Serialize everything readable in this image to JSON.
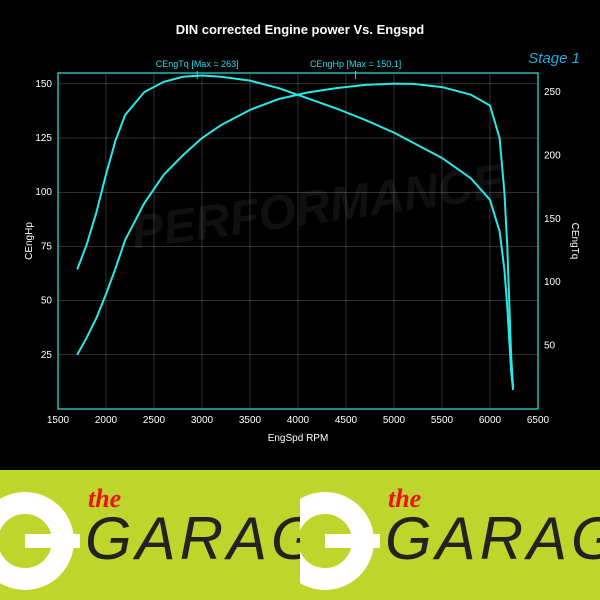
{
  "chart": {
    "type": "line",
    "title": "DIN corrected Engine power Vs. Engspd",
    "stage_label": "Stage 1",
    "background_color": "#000000",
    "line_color": "#28e8e8",
    "line_width": 2,
    "grid_color": "#666666",
    "grid_width": 0.5,
    "axis_color": "#28e8e8",
    "text_color": "#ffffff",
    "title_fontsize": 13,
    "label_fontsize": 10,
    "tick_fontsize": 10,
    "x": {
      "label": "EngSpd RPM",
      "min": 1500,
      "max": 6500,
      "ticks": [
        1500,
        2000,
        2500,
        3000,
        3500,
        4000,
        4500,
        5000,
        5500,
        6000,
        6500
      ]
    },
    "y_left": {
      "label": "CEngHp",
      "min": 0,
      "max": 155,
      "ticks": [
        25,
        50,
        75,
        100,
        125,
        150
      ]
    },
    "y_right": {
      "label": "CEngTq",
      "min": 0,
      "max": 265,
      "ticks": [
        50,
        100,
        150,
        200,
        250
      ]
    },
    "series_labels": {
      "torque": "CEngTq [Max = 263]",
      "power": "CEngHp [Max = 150.1]"
    },
    "series": {
      "power_hp": {
        "axis": "left",
        "data": [
          [
            1700,
            25
          ],
          [
            1800,
            33
          ],
          [
            1900,
            42
          ],
          [
            2000,
            53
          ],
          [
            2100,
            65
          ],
          [
            2200,
            78
          ],
          [
            2400,
            95
          ],
          [
            2600,
            108
          ],
          [
            2800,
            117
          ],
          [
            3000,
            125
          ],
          [
            3200,
            131
          ],
          [
            3500,
            138
          ],
          [
            3800,
            143
          ],
          [
            4100,
            146
          ],
          [
            4400,
            148
          ],
          [
            4700,
            149.5
          ],
          [
            5000,
            150.1
          ],
          [
            5200,
            150
          ],
          [
            5500,
            148.5
          ],
          [
            5800,
            145
          ],
          [
            6000,
            140
          ],
          [
            6100,
            125
          ],
          [
            6150,
            100
          ],
          [
            6180,
            75
          ],
          [
            6200,
            50
          ],
          [
            6220,
            25
          ],
          [
            6240,
            10
          ]
        ]
      },
      "torque_nm": {
        "axis": "right",
        "data": [
          [
            1700,
            110
          ],
          [
            1800,
            130
          ],
          [
            1900,
            155
          ],
          [
            2000,
            185
          ],
          [
            2100,
            212
          ],
          [
            2200,
            232
          ],
          [
            2400,
            250
          ],
          [
            2600,
            258
          ],
          [
            2800,
            262
          ],
          [
            3000,
            263
          ],
          [
            3200,
            262
          ],
          [
            3500,
            259
          ],
          [
            3800,
            253
          ],
          [
            4100,
            245
          ],
          [
            4400,
            237
          ],
          [
            4700,
            228
          ],
          [
            5000,
            218
          ],
          [
            5200,
            210
          ],
          [
            5500,
            198
          ],
          [
            5800,
            182
          ],
          [
            6000,
            165
          ],
          [
            6100,
            140
          ],
          [
            6150,
            110
          ],
          [
            6180,
            80
          ],
          [
            6200,
            55
          ],
          [
            6220,
            30
          ],
          [
            6240,
            15
          ]
        ]
      }
    }
  },
  "footer": {
    "the": "the",
    "garage": "GARAGE",
    "bg_color": "#bed62b",
    "the_color": "#e11",
    "garage_color": "#222"
  }
}
